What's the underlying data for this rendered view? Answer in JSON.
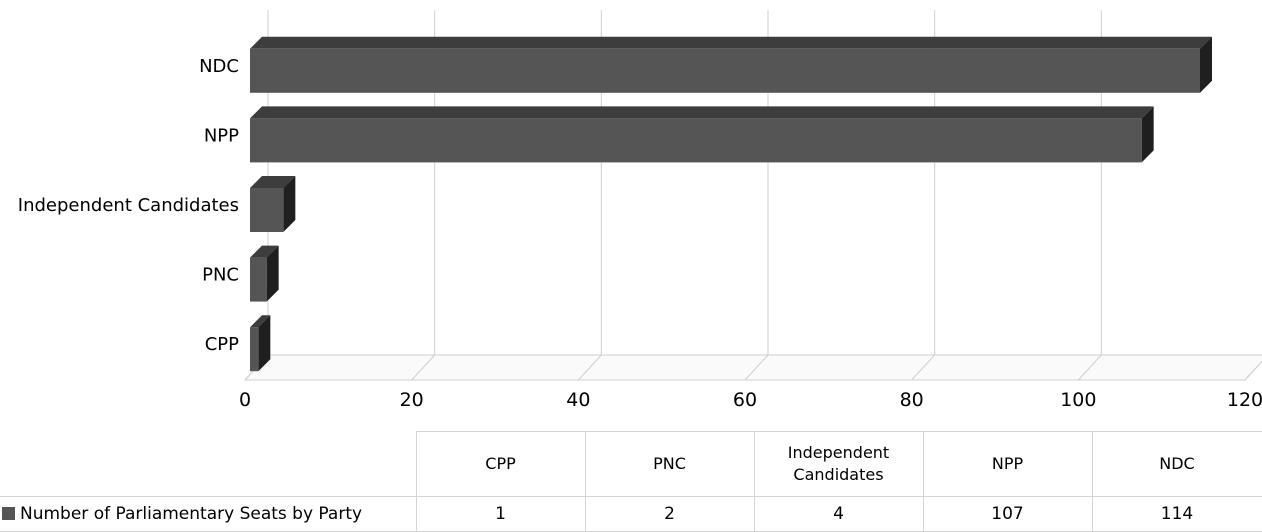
{
  "chart_data": {
    "type": "bar",
    "orientation": "horizontal",
    "style": "3d",
    "categories": [
      "CPP",
      "PNC",
      "Independent Candidates",
      "NPP",
      "NDC"
    ],
    "series": [
      {
        "name": "Number of Parliamentary Seats by Party",
        "values": [
          1,
          2,
          4,
          107,
          114
        ]
      }
    ],
    "xlim": [
      0,
      120
    ],
    "x_ticks": [
      "0",
      "20",
      "40",
      "60",
      "80",
      "100",
      "120"
    ],
    "grid": true,
    "bar_color": "#555555",
    "legend": "data-table-bottom"
  },
  "table": {
    "headers": [
      "CPP",
      "PNC",
      "Independent Candidates",
      "NPP",
      "NDC"
    ],
    "series_label": "Number of Parliamentary Seats by Party",
    "values": [
      "1",
      "2",
      "4",
      "107",
      "114"
    ]
  }
}
